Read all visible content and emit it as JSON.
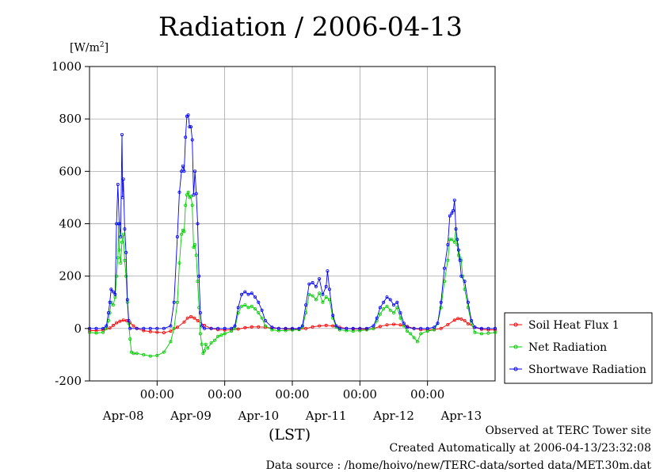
{
  "title": "Radiation / 2006-04-13",
  "unit": {
    "base": "[W/m",
    "sup": "2",
    "close": "]"
  },
  "xlabel": "(LST)",
  "footer": {
    "line1": "Observed at TERC Tower site",
    "line2": "Created Automatically at 2006-04-13/23:32:08",
    "line3": "Data source : /home/hoivo/new/TERC-data/sorted  data/MET.30m.dat"
  },
  "chart_data": {
    "type": "line",
    "title": "Radiation / 2006-04-13",
    "ylabel": "[W/m2]",
    "xlabel": "(LST)",
    "ylim": [
      -200,
      1000
    ],
    "xlim_days": [
      0,
      6
    ],
    "yticks": [
      "1000",
      "800",
      "600",
      "400",
      "200",
      "0",
      "-200"
    ],
    "time_tick_labels": [
      "00:00",
      "00:00",
      "00:00",
      "00:00",
      "00:00"
    ],
    "date_labels": [
      "Apr-08",
      "Apr-09",
      "Apr-10",
      "Apr-11",
      "Apr-12",
      "Apr-13"
    ],
    "grid": true,
    "legend_position": "right",
    "series": [
      {
        "name": "Soil Heat Flux 1",
        "color": "#ff0000",
        "points": [
          [
            0.0,
            -8
          ],
          [
            0.1,
            -8
          ],
          [
            0.2,
            -6
          ],
          [
            0.3,
            2
          ],
          [
            0.35,
            12
          ],
          [
            0.4,
            22
          ],
          [
            0.45,
            28
          ],
          [
            0.5,
            32
          ],
          [
            0.55,
            30
          ],
          [
            0.6,
            22
          ],
          [
            0.65,
            10
          ],
          [
            0.7,
            0
          ],
          [
            0.8,
            -8
          ],
          [
            0.9,
            -12
          ],
          [
            1.0,
            -14
          ],
          [
            1.1,
            -16
          ],
          [
            1.2,
            -10
          ],
          [
            1.3,
            5
          ],
          [
            1.4,
            25
          ],
          [
            1.45,
            40
          ],
          [
            1.5,
            45
          ],
          [
            1.55,
            40
          ],
          [
            1.6,
            30
          ],
          [
            1.7,
            12
          ],
          [
            1.8,
            0
          ],
          [
            1.9,
            -4
          ],
          [
            2.0,
            -6
          ],
          [
            2.1,
            -5
          ],
          [
            2.2,
            -2
          ],
          [
            2.3,
            3
          ],
          [
            2.4,
            6
          ],
          [
            2.5,
            6
          ],
          [
            2.6,
            5
          ],
          [
            2.7,
            2
          ],
          [
            2.8,
            0
          ],
          [
            2.9,
            -2
          ],
          [
            3.0,
            -3
          ],
          [
            3.1,
            -3
          ],
          [
            3.2,
            0
          ],
          [
            3.3,
            6
          ],
          [
            3.4,
            10
          ],
          [
            3.5,
            12
          ],
          [
            3.6,
            10
          ],
          [
            3.7,
            5
          ],
          [
            3.8,
            0
          ],
          [
            3.9,
            -2
          ],
          [
            4.0,
            -3
          ],
          [
            4.1,
            -3
          ],
          [
            4.2,
            0
          ],
          [
            4.3,
            8
          ],
          [
            4.4,
            14
          ],
          [
            4.5,
            16
          ],
          [
            4.6,
            14
          ],
          [
            4.7,
            8
          ],
          [
            4.8,
            0
          ],
          [
            4.9,
            -4
          ],
          [
            5.0,
            -5
          ],
          [
            5.1,
            -4
          ],
          [
            5.2,
            0
          ],
          [
            5.3,
            15
          ],
          [
            5.4,
            32
          ],
          [
            5.45,
            38
          ],
          [
            5.5,
            36
          ],
          [
            5.55,
            30
          ],
          [
            5.6,
            18
          ],
          [
            5.7,
            5
          ],
          [
            5.8,
            -3
          ],
          [
            5.9,
            -5
          ],
          [
            6.0,
            -5
          ]
        ]
      },
      {
        "name": "Net Radiation",
        "color": "#00cc00",
        "points": [
          [
            0.0,
            -15
          ],
          [
            0.1,
            -17
          ],
          [
            0.2,
            -15
          ],
          [
            0.25,
            0
          ],
          [
            0.28,
            30
          ],
          [
            0.3,
            60
          ],
          [
            0.32,
            100
          ],
          [
            0.35,
            90
          ],
          [
            0.38,
            120
          ],
          [
            0.4,
            200
          ],
          [
            0.42,
            270
          ],
          [
            0.43,
            400
          ],
          [
            0.44,
            300
          ],
          [
            0.46,
            250
          ],
          [
            0.48,
            330
          ],
          [
            0.5,
            360
          ],
          [
            0.52,
            260
          ],
          [
            0.54,
            200
          ],
          [
            0.56,
            100
          ],
          [
            0.58,
            20
          ],
          [
            0.6,
            -40
          ],
          [
            0.62,
            -90
          ],
          [
            0.65,
            -95
          ],
          [
            0.7,
            -95
          ],
          [
            0.8,
            -100
          ],
          [
            0.9,
            -105
          ],
          [
            1.0,
            -103
          ],
          [
            1.1,
            -90
          ],
          [
            1.2,
            -50
          ],
          [
            1.25,
            0
          ],
          [
            1.3,
            100
          ],
          [
            1.33,
            250
          ],
          [
            1.36,
            360
          ],
          [
            1.38,
            375
          ],
          [
            1.4,
            370
          ],
          [
            1.42,
            470
          ],
          [
            1.44,
            510
          ],
          [
            1.46,
            520
          ],
          [
            1.48,
            500
          ],
          [
            1.5,
            505
          ],
          [
            1.52,
            470
          ],
          [
            1.54,
            310
          ],
          [
            1.56,
            320
          ],
          [
            1.58,
            280
          ],
          [
            1.6,
            180
          ],
          [
            1.62,
            80
          ],
          [
            1.64,
            -20
          ],
          [
            1.66,
            -60
          ],
          [
            1.68,
            -95
          ],
          [
            1.7,
            -85
          ],
          [
            1.72,
            -60
          ],
          [
            1.75,
            -75
          ],
          [
            1.8,
            -55
          ],
          [
            1.85,
            -45
          ],
          [
            1.9,
            -30
          ],
          [
            1.95,
            -25
          ],
          [
            2.0,
            -20
          ],
          [
            2.1,
            -10
          ],
          [
            2.15,
            0
          ],
          [
            2.2,
            60
          ],
          [
            2.25,
            85
          ],
          [
            2.3,
            90
          ],
          [
            2.35,
            80
          ],
          [
            2.4,
            85
          ],
          [
            2.45,
            75
          ],
          [
            2.5,
            60
          ],
          [
            2.55,
            40
          ],
          [
            2.6,
            10
          ],
          [
            2.7,
            -5
          ],
          [
            2.8,
            -8
          ],
          [
            2.9,
            -8
          ],
          [
            3.0,
            -6
          ],
          [
            3.1,
            -4
          ],
          [
            3.15,
            5
          ],
          [
            3.2,
            60
          ],
          [
            3.25,
            130
          ],
          [
            3.3,
            125
          ],
          [
            3.35,
            110
          ],
          [
            3.4,
            135
          ],
          [
            3.45,
            100
          ],
          [
            3.5,
            120
          ],
          [
            3.55,
            110
          ],
          [
            3.6,
            40
          ],
          [
            3.65,
            5
          ],
          [
            3.7,
            -5
          ],
          [
            3.8,
            -8
          ],
          [
            3.9,
            -10
          ],
          [
            4.0,
            -8
          ],
          [
            4.1,
            -5
          ],
          [
            4.2,
            0
          ],
          [
            4.25,
            30
          ],
          [
            4.3,
            55
          ],
          [
            4.35,
            75
          ],
          [
            4.4,
            85
          ],
          [
            4.45,
            70
          ],
          [
            4.5,
            60
          ],
          [
            4.55,
            80
          ],
          [
            4.6,
            40
          ],
          [
            4.65,
            10
          ],
          [
            4.7,
            -10
          ],
          [
            4.75,
            -20
          ],
          [
            4.8,
            -35
          ],
          [
            4.85,
            -50
          ],
          [
            4.9,
            -20
          ],
          [
            5.0,
            -10
          ],
          [
            5.1,
            -5
          ],
          [
            5.15,
            20
          ],
          [
            5.2,
            80
          ],
          [
            5.25,
            180
          ],
          [
            5.3,
            260
          ],
          [
            5.33,
            340
          ],
          [
            5.36,
            340
          ],
          [
            5.4,
            330
          ],
          [
            5.42,
            380
          ],
          [
            5.44,
            320
          ],
          [
            5.46,
            280
          ],
          [
            5.48,
            270
          ],
          [
            5.5,
            260
          ],
          [
            5.52,
            200
          ],
          [
            5.55,
            150
          ],
          [
            5.6,
            80
          ],
          [
            5.65,
            20
          ],
          [
            5.7,
            -15
          ],
          [
            5.8,
            -20
          ],
          [
            5.9,
            -18
          ],
          [
            6.0,
            -15
          ]
        ]
      },
      {
        "name": "Shortwave Radiation",
        "color": "#0000ff",
        "points": [
          [
            0.0,
            0
          ],
          [
            0.1,
            0
          ],
          [
            0.2,
            0
          ],
          [
            0.25,
            10
          ],
          [
            0.28,
            60
          ],
          [
            0.3,
            100
          ],
          [
            0.32,
            150
          ],
          [
            0.35,
            140
          ],
          [
            0.38,
            130
          ],
          [
            0.4,
            400
          ],
          [
            0.42,
            550
          ],
          [
            0.44,
            400
          ],
          [
            0.46,
            350
          ],
          [
            0.48,
            740
          ],
          [
            0.49,
            500
          ],
          [
            0.5,
            570
          ],
          [
            0.52,
            380
          ],
          [
            0.54,
            290
          ],
          [
            0.56,
            110
          ],
          [
            0.58,
            30
          ],
          [
            0.6,
            0
          ],
          [
            0.7,
            0
          ],
          [
            0.8,
            0
          ],
          [
            0.9,
            0
          ],
          [
            1.0,
            0
          ],
          [
            1.1,
            0
          ],
          [
            1.2,
            10
          ],
          [
            1.25,
            100
          ],
          [
            1.3,
            350
          ],
          [
            1.33,
            520
          ],
          [
            1.36,
            600
          ],
          [
            1.38,
            620
          ],
          [
            1.4,
            600
          ],
          [
            1.42,
            730
          ],
          [
            1.44,
            810
          ],
          [
            1.46,
            815
          ],
          [
            1.48,
            770
          ],
          [
            1.5,
            770
          ],
          [
            1.52,
            720
          ],
          [
            1.54,
            510
          ],
          [
            1.56,
            600
          ],
          [
            1.58,
            515
          ],
          [
            1.6,
            400
          ],
          [
            1.62,
            200
          ],
          [
            1.64,
            60
          ],
          [
            1.66,
            10
          ],
          [
            1.7,
            0
          ],
          [
            1.8,
            0
          ],
          [
            1.9,
            0
          ],
          [
            2.0,
            0
          ],
          [
            2.1,
            0
          ],
          [
            2.15,
            10
          ],
          [
            2.2,
            80
          ],
          [
            2.25,
            130
          ],
          [
            2.3,
            140
          ],
          [
            2.35,
            130
          ],
          [
            2.4,
            135
          ],
          [
            2.45,
            120
          ],
          [
            2.5,
            100
          ],
          [
            2.55,
            70
          ],
          [
            2.6,
            30
          ],
          [
            2.7,
            5
          ],
          [
            2.8,
            0
          ],
          [
            2.9,
            0
          ],
          [
            3.0,
            0
          ],
          [
            3.1,
            0
          ],
          [
            3.15,
            10
          ],
          [
            3.2,
            90
          ],
          [
            3.25,
            170
          ],
          [
            3.3,
            175
          ],
          [
            3.35,
            160
          ],
          [
            3.4,
            190
          ],
          [
            3.45,
            130
          ],
          [
            3.5,
            160
          ],
          [
            3.52,
            220
          ],
          [
            3.55,
            150
          ],
          [
            3.6,
            50
          ],
          [
            3.65,
            10
          ],
          [
            3.7,
            0
          ],
          [
            3.8,
            0
          ],
          [
            3.9,
            0
          ],
          [
            4.0,
            0
          ],
          [
            4.1,
            0
          ],
          [
            4.2,
            10
          ],
          [
            4.25,
            40
          ],
          [
            4.3,
            80
          ],
          [
            4.35,
            100
          ],
          [
            4.4,
            120
          ],
          [
            4.45,
            110
          ],
          [
            4.5,
            90
          ],
          [
            4.55,
            100
          ],
          [
            4.6,
            60
          ],
          [
            4.65,
            20
          ],
          [
            4.7,
            5
          ],
          [
            4.8,
            0
          ],
          [
            4.9,
            0
          ],
          [
            5.0,
            0
          ],
          [
            5.1,
            5
          ],
          [
            5.15,
            20
          ],
          [
            5.2,
            100
          ],
          [
            5.25,
            230
          ],
          [
            5.3,
            320
          ],
          [
            5.33,
            430
          ],
          [
            5.36,
            440
          ],
          [
            5.38,
            450
          ],
          [
            5.4,
            490
          ],
          [
            5.42,
            380
          ],
          [
            5.44,
            340
          ],
          [
            5.46,
            300
          ],
          [
            5.48,
            260
          ],
          [
            5.5,
            200
          ],
          [
            5.55,
            180
          ],
          [
            5.6,
            100
          ],
          [
            5.65,
            30
          ],
          [
            5.7,
            5
          ],
          [
            5.8,
            0
          ],
          [
            5.9,
            0
          ],
          [
            6.0,
            0
          ]
        ]
      }
    ]
  }
}
